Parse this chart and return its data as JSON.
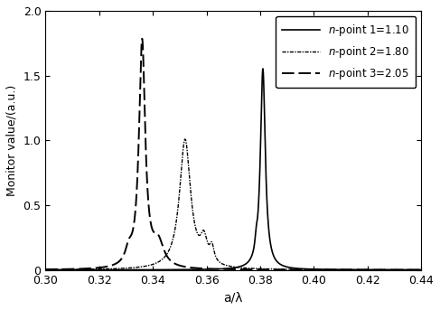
{
  "title": "",
  "xlabel": "a/λ",
  "ylabel": "Monitor value/(a.u.)",
  "xlim": [
    0.3,
    0.44
  ],
  "ylim": [
    0,
    2
  ],
  "xticks": [
    0.3,
    0.32,
    0.34,
    0.36,
    0.38,
    0.4,
    0.42,
    0.44
  ],
  "yticks": [
    0,
    0.5,
    1.0,
    1.5,
    2.0
  ],
  "legend_labels": [
    "n-point 1=1.10",
    "n-point 2=1.80",
    "n-point 3=2.05"
  ],
  "curve1_peaks": [
    [
      0.381,
      0.0022,
      1.55
    ],
    [
      0.3785,
      0.001,
      0.08
    ]
  ],
  "curve2_peaks": [
    [
      0.352,
      0.005,
      1.0
    ],
    [
      0.359,
      0.003,
      0.18
    ],
    [
      0.362,
      0.002,
      0.12
    ]
  ],
  "curve3_peaks": [
    [
      0.336,
      0.0028,
      1.75
    ],
    [
      0.342,
      0.005,
      0.18
    ],
    [
      0.331,
      0.003,
      0.1
    ]
  ]
}
